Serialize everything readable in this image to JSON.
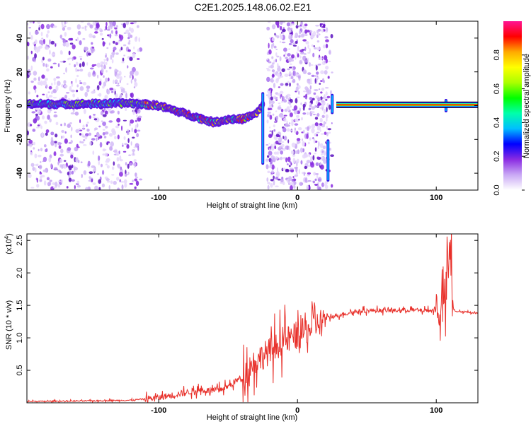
{
  "title": "C2E1.2025.148.06.02.E21",
  "chart_data": [
    {
      "type": "heatmap",
      "xlabel": "Height of straight line (km)",
      "ylabel": "Frequency (Hz)",
      "xlim": [
        -195,
        130
      ],
      "ylim": [
        -50,
        50
      ],
      "xticks": [
        -100,
        0,
        100
      ],
      "yticks": [
        -40,
        -20,
        0,
        20,
        40
      ],
      "colorbar": {
        "label": "Normalized spectral amplitude",
        "range": [
          0,
          1
        ],
        "ticks": [
          "0.0",
          "0.2",
          "0.4",
          "0.6",
          "0.8"
        ],
        "colors": [
          "#ffffff",
          "#c9a8f5",
          "#8a2be2",
          "#0000ff",
          "#00bfff",
          "#00ffaa",
          "#00ff00",
          "#aaff00",
          "#ffff00",
          "#ffaa00",
          "#ff0000",
          "#ff1493"
        ]
      },
      "scatter_regions": [
        {
          "x_range": [
            -195,
            -113
          ],
          "density": 1.0
        },
        {
          "x_range": [
            -22,
            22
          ],
          "density": 1.6
        },
        {
          "x_range": [
            22,
            25
          ],
          "density": 0.6
        }
      ],
      "line_ridge": {
        "x": [
          -195,
          -150,
          -120,
          -100,
          -80,
          -60,
          -50,
          -40,
          -30,
          -25
        ],
        "y": [
          1,
          1,
          1.5,
          0,
          -5,
          -10,
          -8,
          -8,
          -5,
          0
        ]
      },
      "carrier": {
        "x": [
          28,
          130
        ],
        "y": 0.5
      },
      "spikes": [
        {
          "x": -25,
          "y_top": 8,
          "y_bottom": -35
        },
        {
          "x": 22,
          "y_top": -20,
          "y_bottom": -45
        },
        {
          "x": 25,
          "y_top": 7,
          "y_bottom": -5
        },
        {
          "x": 107,
          "y_top": 4,
          "y_bottom": -4
        }
      ]
    },
    {
      "type": "line",
      "xlabel": "Height of straight line (km)",
      "ylabel": "SNR (10 * v/v)",
      "exponent_label": "(x10",
      "exponent_sup": "4",
      "exponent_close": ")",
      "xlim": [
        -195,
        130
      ],
      "ylim": [
        0,
        2.6
      ],
      "xticks": [
        -100,
        0,
        100
      ],
      "yticks": [
        0.5,
        1.0,
        1.5,
        2.0,
        2.5
      ],
      "ytick_labels": [
        "0.5",
        "1.0",
        "1.5",
        "2.0",
        "2.5"
      ],
      "series": [
        {
          "color": "#e8302a",
          "x": [
            -195,
            -150,
            -120,
            -110,
            -100,
            -90,
            -80,
            -70,
            -60,
            -50,
            -40,
            -35,
            -30,
            -20,
            -10,
            0,
            10,
            20,
            30,
            40,
            50,
            60,
            70,
            80,
            90,
            95,
            100,
            105,
            108,
            110,
            112,
            115,
            120,
            130
          ],
          "y": [
            0.02,
            0.03,
            0.04,
            0.06,
            0.08,
            0.12,
            0.16,
            0.2,
            0.18,
            0.25,
            0.4,
            0.55,
            0.65,
            0.8,
            0.95,
            1.05,
            1.15,
            1.3,
            1.35,
            1.4,
            1.42,
            1.42,
            1.42,
            1.43,
            1.42,
            1.42,
            1.42,
            1.5,
            1.8,
            2.4,
            1.45,
            1.4,
            1.4,
            1.38
          ]
        }
      ]
    }
  ]
}
